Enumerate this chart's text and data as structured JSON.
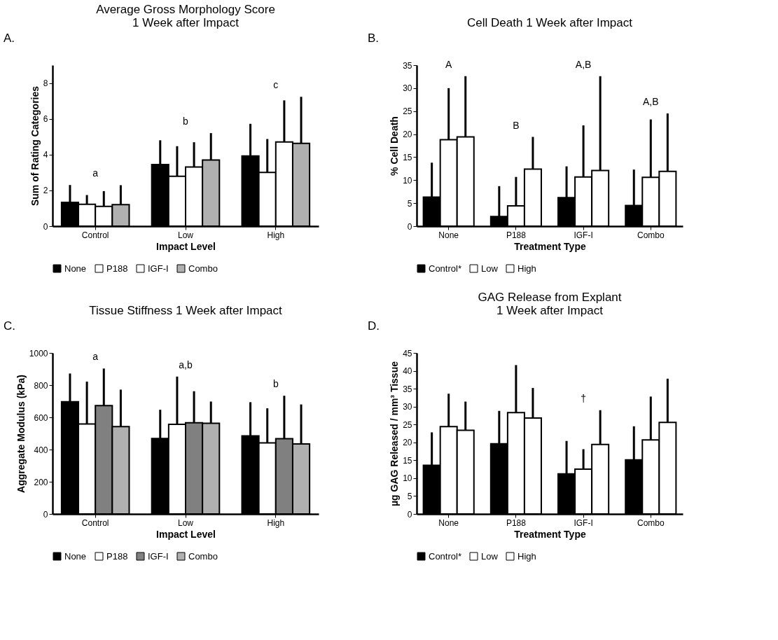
{
  "chart_data": [
    {
      "type": "bar",
      "title": "Average Gross Morphology Score\n1 Week after Impact",
      "xlabel": "Impact Level",
      "ylabel": "Sum of Rating Categories",
      "categories": [
        "Control",
        "Low",
        "High"
      ],
      "ylim": [
        0,
        9
      ],
      "yticks": [
        0,
        2,
        4,
        6,
        8
      ],
      "legend": "bottom",
      "series": [
        {
          "name": "None",
          "color": "#000000",
          "values": [
            1.33,
            3.44,
            3.92
          ],
          "errors": [
            [
              1.33,
              2.3
            ],
            [
              3.44,
              4.8
            ],
            [
              3.92,
              5.72
            ]
          ]
        },
        {
          "name": "P188",
          "color": "#ffffff",
          "values": [
            1.22,
            2.79,
            3.0
          ],
          "errors": [
            [
              1.22,
              1.74
            ],
            [
              2.79,
              4.47
            ],
            [
              3.0,
              4.87
            ]
          ]
        },
        {
          "name": "IGF-I",
          "color": "#ffffff",
          "values": [
            1.11,
            3.31,
            4.71
          ],
          "errors": [
            [
              1.11,
              1.96
            ],
            [
              3.31,
              4.69
            ],
            [
              4.71,
              7.03
            ]
          ]
        },
        {
          "name": "Combo",
          "color": "#b0b0b0",
          "values": [
            1.2,
            3.7,
            4.63
          ],
          "errors": [
            [
              1.2,
              2.29
            ],
            [
              3.7,
              5.2
            ],
            [
              4.63,
              7.23
            ]
          ]
        }
      ],
      "annotations": [
        "A.",
        "a",
        "b",
        "c"
      ]
    },
    {
      "type": "bar",
      "title": "Cell Death 1 Week after Impact",
      "xlabel": "Treatment Type",
      "ylabel": "% Cell Death",
      "categories": [
        "None",
        "P188",
        "IGF-I",
        "Combo"
      ],
      "ylim": [
        0,
        35
      ],
      "yticks": [
        0,
        5,
        10,
        15,
        20,
        25,
        30,
        35
      ],
      "legend": "bottom",
      "series": [
        {
          "name": "Control*",
          "color": "#000000",
          "values": [
            6.3,
            2.1,
            6.2,
            4.5
          ],
          "errors": [
            [
              6.3,
              13.8
            ],
            [
              2.1,
              8.7
            ],
            [
              6.2,
              13.0
            ],
            [
              4.5,
              12.3
            ]
          ]
        },
        {
          "name": "Low",
          "color": "#ffffff",
          "values": [
            18.8,
            4.4,
            10.7,
            10.6
          ],
          "errors": [
            [
              18.8,
              30.0
            ],
            [
              4.4,
              10.7
            ],
            [
              10.7,
              21.9
            ],
            [
              10.6,
              23.2
            ]
          ]
        },
        {
          "name": "High",
          "color": "#ffffff",
          "values": [
            19.4,
            12.4,
            12.1,
            11.9
          ],
          "errors": [
            [
              19.4,
              32.6
            ],
            [
              12.4,
              19.4
            ],
            [
              12.1,
              32.6
            ],
            [
              11.9,
              24.5
            ]
          ]
        }
      ],
      "annotations": [
        "B.",
        "A",
        "B",
        "A,B",
        "A,B"
      ]
    },
    {
      "type": "bar",
      "title": "Tissue Stiffness 1 Week after Impact",
      "xlabel": "Impact Level",
      "ylabel": "Aggregate Modulus (kPa)",
      "categories": [
        "Control",
        "Low",
        "High"
      ],
      "ylim": [
        0,
        1000
      ],
      "yticks": [
        0,
        200,
        400,
        600,
        800,
        {
          "value": 1000,
          "label": "1000"
        }
      ],
      "legend": "bottom",
      "series": [
        {
          "name": "None",
          "color": "#000000",
          "values": [
            697,
            469,
            485
          ],
          "errors": [
            [
              697,
              872
            ],
            [
              469,
              647
            ],
            [
              485,
              694
            ]
          ]
        },
        {
          "name": "P188",
          "color": "#ffffff",
          "values": [
            559,
            556,
            441
          ],
          "errors": [
            [
              559,
              822
            ],
            [
              556,
              853
            ],
            [
              441,
              656
            ]
          ]
        },
        {
          "name": "IGF-I",
          "color": "#808080",
          "values": [
            673,
            566,
            467
          ],
          "errors": [
            [
              673,
              903
            ],
            [
              566,
              762
            ],
            [
              467,
              734
            ]
          ]
        },
        {
          "name": "Combo",
          "color": "#b0b0b0",
          "values": [
            542,
            563,
            435
          ],
          "errors": [
            [
              542,
              772
            ],
            [
              563,
              698
            ],
            [
              435,
              680
            ]
          ]
        }
      ],
      "annotations": [
        "C.",
        "a",
        "a,b",
        "b"
      ]
    },
    {
      "type": "bar",
      "title": "GAG Release from Explant\n1 Week after Impact",
      "xlabel": "Treatment Type",
      "ylabel": "µg GAG Released / mm³ Tissue",
      "categories": [
        "None",
        "P188",
        "IGF-I",
        "Combo"
      ],
      "ylim": [
        0,
        45
      ],
      "yticks": [
        0,
        5,
        10,
        15,
        20,
        25,
        30,
        35,
        40,
        45
      ],
      "legend": "bottom",
      "series": [
        {
          "name": "Control*",
          "color": "#000000",
          "values": [
            13.6,
            19.6,
            11.2,
            15.1
          ],
          "errors": [
            [
              13.6,
              22.8
            ],
            [
              19.6,
              28.8
            ],
            [
              11.2,
              20.4
            ],
            [
              15.1,
              24.5
            ]
          ]
        },
        {
          "name": "Low",
          "color": "#ffffff",
          "values": [
            24.4,
            28.3,
            12.5,
            20.7
          ],
          "errors": [
            [
              24.4,
              33.6
            ],
            [
              28.3,
              41.6
            ],
            [
              12.5,
              18.1
            ],
            [
              20.7,
              32.8
            ]
          ]
        },
        {
          "name": "High",
          "color": "#ffffff",
          "values": [
            23.4,
            26.8,
            19.4,
            25.6
          ],
          "errors": [
            [
              23.4,
              31.4
            ],
            [
              26.8,
              35.2
            ],
            [
              19.4,
              29.0
            ],
            [
              25.6,
              37.8
            ]
          ]
        }
      ],
      "annotations": [
        "D.",
        "†"
      ]
    }
  ]
}
